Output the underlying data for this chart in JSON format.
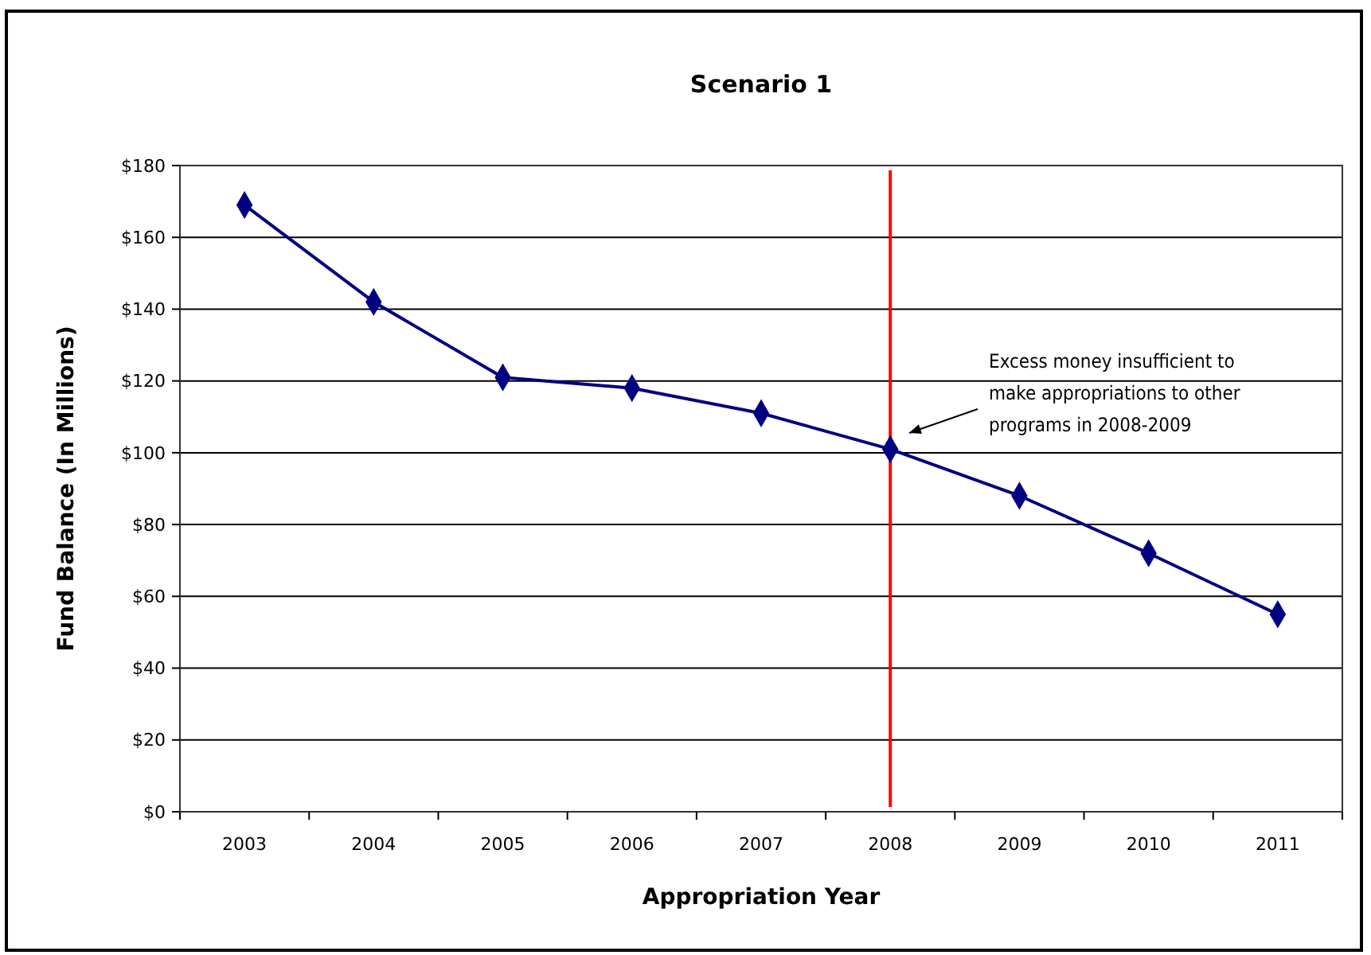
{
  "chart_data": {
    "type": "line",
    "title": "Scenario 1",
    "xlabel": "Appropriation Year",
    "ylabel": "Fund Balance (In Millions)",
    "categories": [
      "2003",
      "2004",
      "2005",
      "2006",
      "2007",
      "2008",
      "2009",
      "2010",
      "2011"
    ],
    "series": [
      {
        "color": "#000080",
        "values": [
          169,
          142,
          121,
          118,
          111,
          101,
          88,
          72,
          55
        ]
      }
    ],
    "ylim": [
      0,
      180
    ],
    "yticks": [
      {
        "value": 0,
        "label": "$0"
      },
      {
        "value": 20,
        "label": "$20"
      },
      {
        "value": 40,
        "label": "$40"
      },
      {
        "value": 60,
        "label": "$60"
      },
      {
        "value": 80,
        "label": "$80"
      },
      {
        "value": 100,
        "label": "$100"
      },
      {
        "value": 120,
        "label": "$120"
      },
      {
        "value": 140,
        "label": "$140"
      },
      {
        "value": 160,
        "label": "$160"
      },
      {
        "value": 180,
        "label": "$180"
      }
    ],
    "grid": "y",
    "marker": "diamond",
    "line_style": "solid",
    "ref_lines": [
      {
        "axis": "x",
        "value": "2008",
        "color": "#ff0000"
      }
    ],
    "annotations": [
      "Excess money insufficient to make appropriations to other programs in 2008-2009"
    ]
  }
}
